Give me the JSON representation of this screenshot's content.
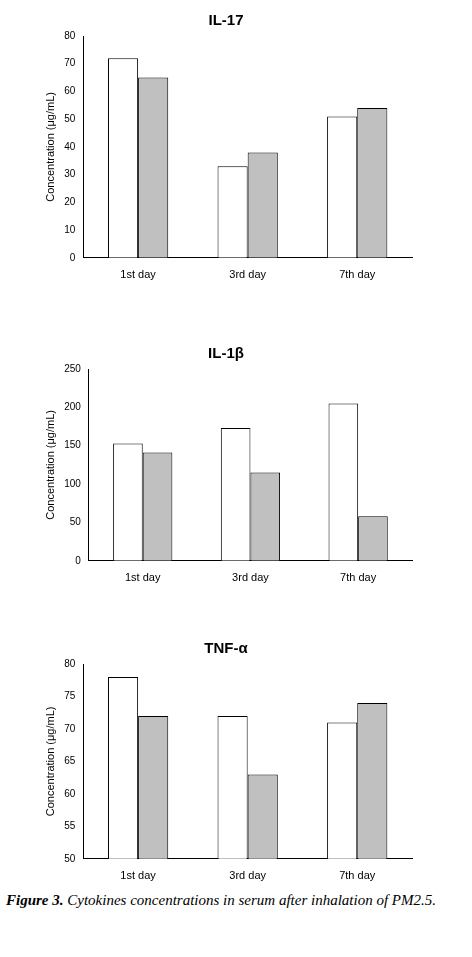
{
  "chart_data": [
    {
      "type": "bar",
      "title": "IL-17",
      "y_label": "Concentration (μg/mL)",
      "categories": [
        "1st day",
        "3rd day",
        "7th day"
      ],
      "series": [
        {
          "color": "#ffffff",
          "values": [
            72,
            33,
            51
          ]
        },
        {
          "color": "#c0c0c0",
          "values": [
            65,
            38,
            54
          ]
        }
      ],
      "ylim": [
        0,
        80
      ],
      "yticks": [
        0,
        10,
        20,
        30,
        40,
        50,
        60,
        70,
        80
      ],
      "grid": false
    },
    {
      "type": "bar",
      "title": "IL-1β",
      "y_label": "Concentration (μg/mL)",
      "categories": [
        "1st day",
        "3rd day",
        "7th day"
      ],
      "series": [
        {
          "color": "#ffffff",
          "values": [
            153,
            173,
            205
          ]
        },
        {
          "color": "#c0c0c0",
          "values": [
            141,
            115,
            58
          ]
        }
      ],
      "ylim": [
        0,
        250
      ],
      "yticks": [
        0,
        50,
        100,
        150,
        200,
        250
      ],
      "grid": false
    },
    {
      "type": "bar",
      "title": "TNF-α",
      "y_label": "Concentration (μg/mL)",
      "categories": [
        "1st day",
        "3rd day",
        "7th day"
      ],
      "series": [
        {
          "color": "#ffffff",
          "values": [
            78,
            72,
            71
          ]
        },
        {
          "color": "#c0c0c0",
          "values": [
            72,
            63,
            74
          ]
        }
      ],
      "ylim": [
        50,
        80
      ],
      "yticks": [
        50,
        55,
        60,
        65,
        70,
        75,
        80
      ],
      "grid": false
    }
  ],
  "caption_label": "Figure 3.",
  "caption": "Cytokines concentrations in serum after inhalation of PM2.5."
}
